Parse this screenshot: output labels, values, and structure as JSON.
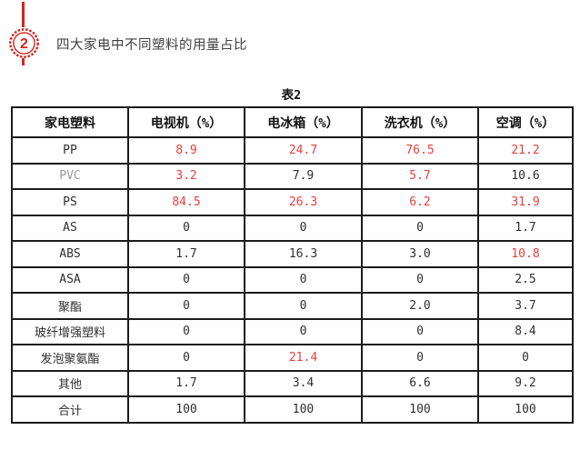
{
  "badge": {
    "number": "2"
  },
  "title": "四大家电中不同塑料的用量占比",
  "table": {
    "caption": "表2",
    "headers": [
      "家电塑料",
      "电视机（%）",
      "电冰箱（%）",
      "洗衣机（%）",
      "空调（%）"
    ],
    "rows": [
      {
        "label": "PP",
        "label_gray": false,
        "values": [
          "8.9",
          "24.7",
          "76.5",
          "21.2"
        ],
        "red": [
          true,
          true,
          true,
          true
        ]
      },
      {
        "label": "PVC",
        "label_gray": true,
        "values": [
          "3.2",
          "7.9",
          "5.7",
          "10.6"
        ],
        "red": [
          true,
          false,
          true,
          false
        ]
      },
      {
        "label": "PS",
        "label_gray": false,
        "values": [
          "84.5",
          "26.3",
          "6.2",
          "31.9"
        ],
        "red": [
          true,
          true,
          true,
          true
        ]
      },
      {
        "label": "AS",
        "label_gray": false,
        "values": [
          "0",
          "0",
          "0",
          "1.7"
        ],
        "red": [
          false,
          false,
          false,
          false
        ]
      },
      {
        "label": "ABS",
        "label_gray": false,
        "values": [
          "1.7",
          "16.3",
          "3.0",
          "10.8"
        ],
        "red": [
          false,
          false,
          false,
          true
        ]
      },
      {
        "label": "ASA",
        "label_gray": false,
        "values": [
          "0",
          "0",
          "0",
          "2.5"
        ],
        "red": [
          false,
          false,
          false,
          false
        ]
      },
      {
        "label": "聚酯",
        "label_gray": false,
        "values": [
          "0",
          "0",
          "2.0",
          "3.7"
        ],
        "red": [
          false,
          false,
          false,
          false
        ]
      },
      {
        "label": "玻纤增强塑料",
        "label_gray": false,
        "values": [
          "0",
          "0",
          "0",
          "8.4"
        ],
        "red": [
          false,
          false,
          false,
          false
        ]
      },
      {
        "label": "发泡聚氨酯",
        "label_gray": false,
        "values": [
          "0",
          "21.4",
          "0",
          "0"
        ],
        "red": [
          false,
          true,
          false,
          false
        ]
      },
      {
        "label": "其他",
        "label_gray": false,
        "values": [
          "1.7",
          "3.4",
          "6.6",
          "9.2"
        ],
        "red": [
          false,
          false,
          false,
          false
        ]
      },
      {
        "label": "合计",
        "label_gray": false,
        "values": [
          "100",
          "100",
          "100",
          "100"
        ],
        "red": [
          false,
          false,
          false,
          false
        ]
      }
    ]
  },
  "colors": {
    "badge_red": "#d3251e",
    "value_red": "#e8403e",
    "border_black": "#1b1b1b",
    "title_gray": "#3f3f3f",
    "label_gray": "#9a9a9a"
  }
}
